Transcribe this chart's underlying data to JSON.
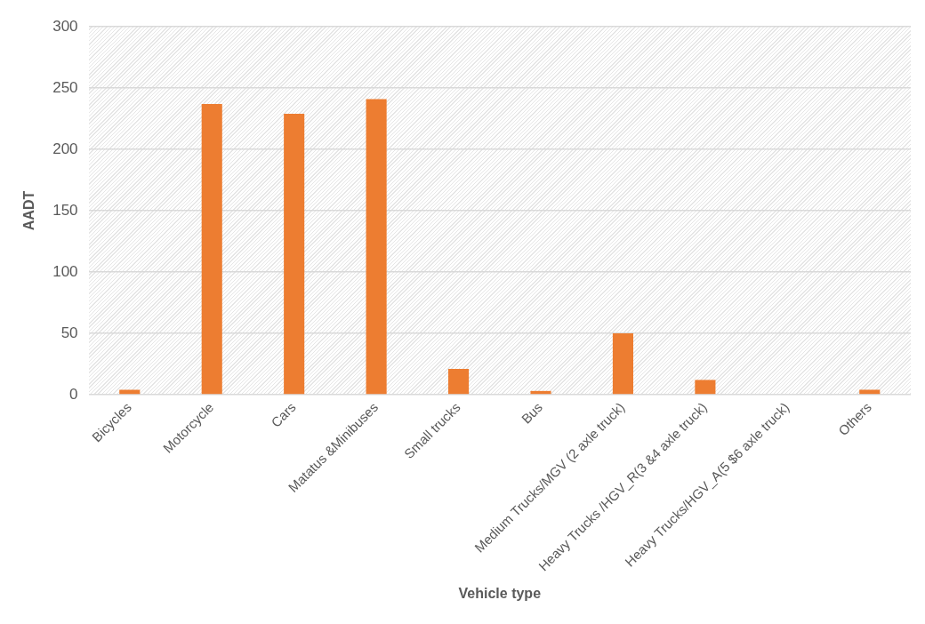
{
  "chart_data": {
    "type": "bar",
    "xlabel": "Vehicle type",
    "ylabel": "AADT",
    "categories": [
      "Bicycles",
      "Motorcycle",
      "Cars",
      "Matatus &Minibuses",
      "Small trucks",
      "Bus",
      "Medium Trucks/MGV (2 axle truck)",
      "Heavy Trucks /HGV_R(3 &4 axle truck)",
      "Heavy Trucks/HGV_A(5 $6 axle truck)",
      "Others"
    ],
    "values": [
      4,
      237,
      229,
      241,
      21,
      3,
      50,
      12,
      null,
      4
    ],
    "color": "#ed7d31",
    "ylim": [
      0,
      300
    ],
    "yticks": [
      0,
      50,
      100,
      150,
      200,
      250,
      300
    ],
    "grid": "y",
    "legend": false
  }
}
